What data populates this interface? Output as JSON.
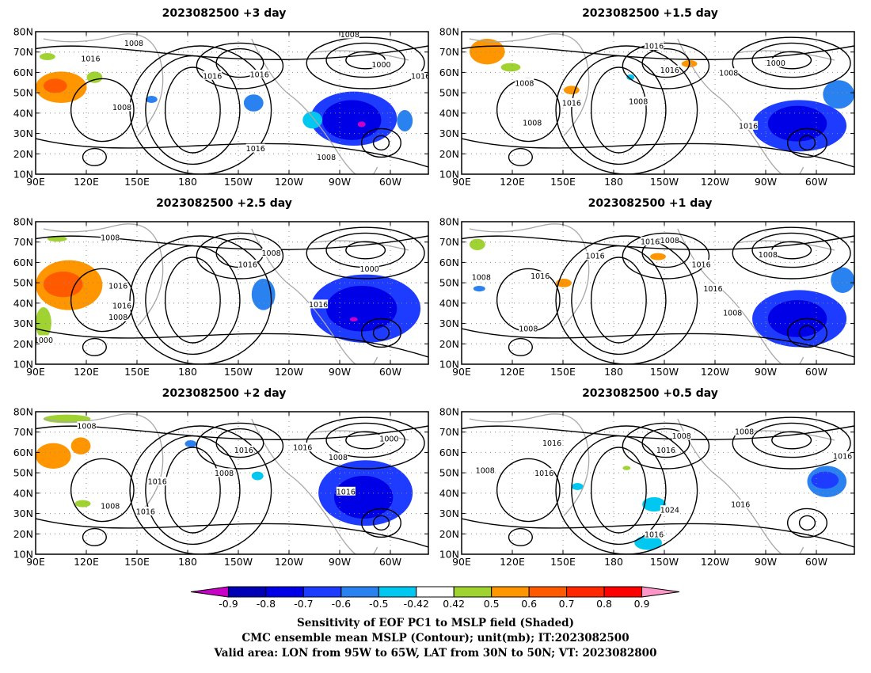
{
  "panels": [
    {
      "title": "2023082500 +3 day"
    },
    {
      "title": "2023082500 +1.5 day"
    },
    {
      "title": "2023082500 +2.5 day"
    },
    {
      "title": "2023082500 +1 day"
    },
    {
      "title": "2023082500 +2 day"
    },
    {
      "title": "2023082500 +0.5 day"
    }
  ],
  "axes": {
    "lon_ticks": [
      "90E",
      "120E",
      "150E",
      "180",
      "150W",
      "120W",
      "90W",
      "60W"
    ],
    "lat_ticks": [
      "80N",
      "70N",
      "60N",
      "50N",
      "40N",
      "30N",
      "20N",
      "10N"
    ]
  },
  "colorbar": {
    "levels": [
      "-0.9",
      "-0.8",
      "-0.7",
      "-0.6",
      "-0.5",
      "-0.42",
      "0.42",
      "0.5",
      "0.6",
      "0.7",
      "0.8",
      "0.9"
    ],
    "colors": [
      "#c800c8",
      "#0000b4",
      "#0000e6",
      "#1e3cff",
      "#2a82f0",
      "#00c8f0",
      "#ffffff",
      "#a0d232",
      "#ff9600",
      "#ff5a00",
      "#ff2800",
      "#ff0000",
      "#ff96c8"
    ]
  },
  "caption": {
    "line1": "Sensitivity of EOF PC1 to MSLP field (Shaded)",
    "line2": "CMC ensemble mean MSLP (Contour); unit(mb); IT:2023082500",
    "line3": "Valid area: LON from 95W to 65W, LAT from 30N to 50N; VT: 2023082800"
  },
  "contour_labels": [
    [
      "1008",
      "1016",
      "1016",
      "1008",
      "1016",
      "1000",
      "1008",
      "1016",
      "1016",
      "1008"
    ],
    [
      "1016",
      "1016",
      "1008",
      "1016",
      "1008",
      "1000",
      "1008",
      "1016",
      "1008"
    ],
    [
      "1008",
      "1016",
      "1008",
      "1000",
      "1016",
      "1008",
      "1016",
      "1016",
      "1000"
    ],
    [
      "1016",
      "1008",
      "1016",
      "1008",
      "1008",
      "1016",
      "1016",
      "1016",
      "1008",
      "1008"
    ],
    [
      "1008",
      "1016",
      "1016",
      "1008",
      "1016",
      "1008",
      "1016",
      "1000",
      "1008",
      "1016"
    ],
    [
      "1008",
      "1016",
      "1008",
      "1016",
      "1016",
      "1024",
      "1016",
      "1016",
      "1016",
      "1008"
    ]
  ]
}
